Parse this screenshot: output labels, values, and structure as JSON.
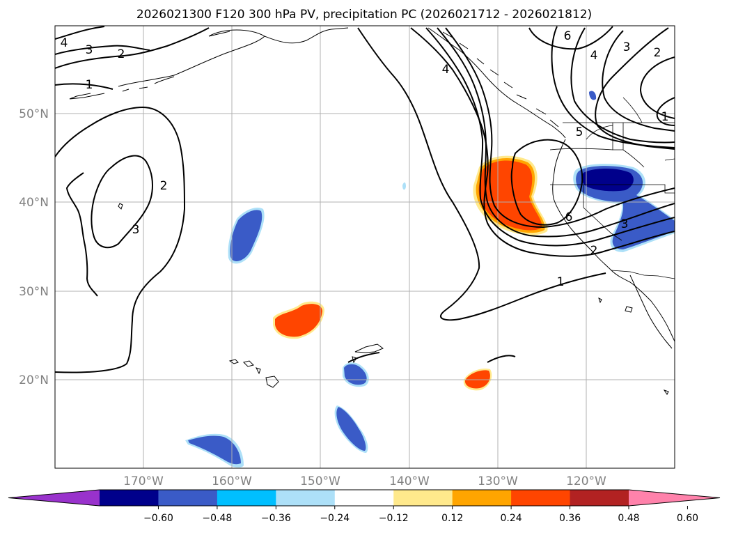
{
  "title": "2026021300 F120 300 hPa PV, precipitation PC (2026021712 - 2026021812)",
  "map": {
    "lat_labels": [
      "50°N",
      "40°N",
      "30°N",
      "20°N"
    ],
    "lon_labels": [
      "170°W",
      "160°W",
      "150°W",
      "140°W",
      "130°W",
      "120°W"
    ],
    "contour_labels": [
      "4",
      "3",
      "2",
      "1",
      "2",
      "3",
      "6",
      "4",
      "5",
      "6",
      "3",
      "2",
      "1",
      "4",
      "3",
      "2",
      "1"
    ]
  },
  "colorbar": {
    "ticks": [
      "−0.60",
      "−0.48",
      "−0.36",
      "−0.24",
      "−0.12",
      "0.12",
      "0.24",
      "0.36",
      "0.48",
      "0.60"
    ],
    "colors": [
      "#9932CC",
      "#00008B",
      "#3A5BC7",
      "#00BFFF",
      "#ADE0F8",
      "#FFFFFF",
      "#FFE98C",
      "#FFA500",
      "#FF4500",
      "#B22222",
      "#FF82AB"
    ]
  },
  "chart_data": {
    "type": "contour-map",
    "title": "2026021300 F120 300 hPa PV, precipitation PC (2026021712 - 2026021812)",
    "projection": "PlateCarree",
    "lon_range": [
      -180,
      -110
    ],
    "lat_range": [
      10,
      60
    ],
    "contour_field": "300 hPa PV",
    "contour_levels": [
      1,
      2,
      3,
      4,
      5,
      6
    ],
    "shaded_field": "precipitation PC",
    "shading_levels": [
      -0.6,
      -0.48,
      -0.36,
      -0.24,
      -0.12,
      0.12,
      0.24,
      0.36,
      0.48,
      0.6
    ],
    "colorbar_extend": "both"
  }
}
